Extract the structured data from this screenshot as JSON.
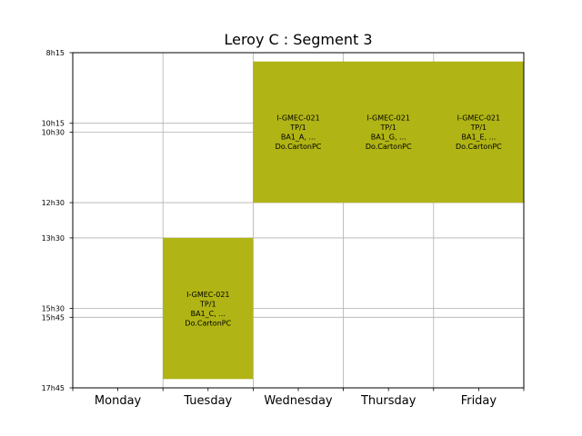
{
  "chart_data": {
    "type": "timetable",
    "title": "Leroy C : Segment 3",
    "days": [
      "Monday",
      "Tuesday",
      "Wednesday",
      "Thursday",
      "Friday"
    ],
    "y_ticks": [
      "8h15",
      "10h15",
      "10h30",
      "12h30",
      "13h30",
      "15h30",
      "15h45",
      "17h45"
    ],
    "y_tick_minutes": [
      495,
      615,
      630,
      750,
      810,
      930,
      945,
      1065
    ],
    "ylim_minutes": [
      495,
      1065
    ],
    "grid": true,
    "block_color": "#b0b414",
    "blocks": [
      {
        "day": "Wednesday",
        "start_minutes": 510,
        "end_minutes": 750,
        "lines": [
          "I-GMEC-021",
          "TP/1",
          "BA1_A, ...",
          "Do.CartonPC"
        ]
      },
      {
        "day": "Thursday",
        "start_minutes": 510,
        "end_minutes": 750,
        "lines": [
          "I-GMEC-021",
          "TP/1",
          "BA1_G, ...",
          "Do.CartonPC"
        ]
      },
      {
        "day": "Friday",
        "start_minutes": 510,
        "end_minutes": 750,
        "lines": [
          "I-GMEC-021",
          "TP/1",
          "BA1_E, ...",
          "Do.CartonPC"
        ]
      },
      {
        "day": "Tuesday",
        "start_minutes": 810,
        "end_minutes": 1050,
        "lines": [
          "I-GMEC-021",
          "TP/1",
          "BA1_C, ...",
          "Do.CartonPC"
        ]
      }
    ]
  }
}
